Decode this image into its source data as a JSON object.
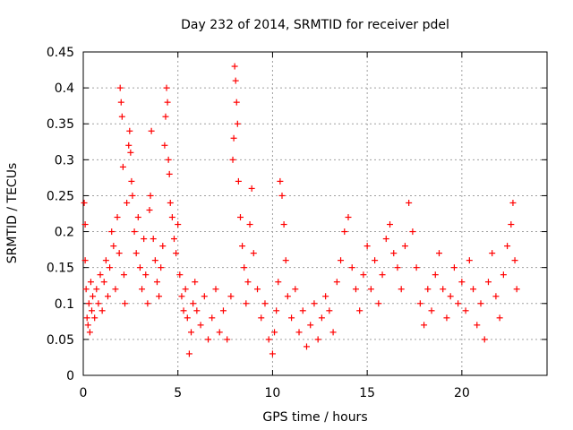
{
  "chart_data": {
    "type": "scatter",
    "title": "Day 232 of 2014, SRMTID for receiver pdel",
    "xlabel": "GPS time / hours",
    "ylabel": "SRMTID / TECUs",
    "xlim": [
      0,
      24.5
    ],
    "ylim": [
      0,
      0.45
    ],
    "xticks": [
      0,
      5,
      10,
      15,
      20
    ],
    "xtick_labels": [
      "0",
      "5",
      "10",
      "15",
      "20"
    ],
    "yticks": [
      0,
      0.05,
      0.1,
      0.15,
      0.2,
      0.25,
      0.3,
      0.35,
      0.4,
      0.45
    ],
    "ytick_labels": [
      "0",
      "0.05",
      "0.1",
      "0.15",
      "0.2",
      "0.25",
      "0.3",
      "0.35",
      "0.4",
      "0.45"
    ],
    "grid": true,
    "marker": "+",
    "color": "#ff0000",
    "series": [
      {
        "name": "SRMTID",
        "points": [
          [
            0.05,
            0.24
          ],
          [
            0.1,
            0.21
          ],
          [
            0.1,
            0.16
          ],
          [
            0.15,
            0.12
          ],
          [
            0.2,
            0.08
          ],
          [
            0.25,
            0.07
          ],
          [
            0.3,
            0.1
          ],
          [
            0.35,
            0.06
          ],
          [
            0.4,
            0.13
          ],
          [
            0.45,
            0.09
          ],
          [
            0.5,
            0.11
          ],
          [
            0.6,
            0.08
          ],
          [
            0.7,
            0.12
          ],
          [
            0.8,
            0.1
          ],
          [
            0.9,
            0.14
          ],
          [
            1.0,
            0.09
          ],
          [
            1.1,
            0.13
          ],
          [
            1.2,
            0.16
          ],
          [
            1.3,
            0.11
          ],
          [
            1.4,
            0.15
          ],
          [
            1.5,
            0.2
          ],
          [
            1.6,
            0.18
          ],
          [
            1.7,
            0.12
          ],
          [
            1.8,
            0.22
          ],
          [
            1.9,
            0.17
          ],
          [
            1.95,
            0.4
          ],
          [
            2.0,
            0.38
          ],
          [
            2.05,
            0.36
          ],
          [
            2.1,
            0.29
          ],
          [
            2.15,
            0.14
          ],
          [
            2.2,
            0.1
          ],
          [
            2.3,
            0.24
          ],
          [
            2.4,
            0.32
          ],
          [
            2.45,
            0.34
          ],
          [
            2.5,
            0.31
          ],
          [
            2.55,
            0.27
          ],
          [
            2.6,
            0.25
          ],
          [
            2.7,
            0.2
          ],
          [
            2.8,
            0.17
          ],
          [
            2.9,
            0.22
          ],
          [
            3.0,
            0.15
          ],
          [
            3.1,
            0.12
          ],
          [
            3.2,
            0.19
          ],
          [
            3.3,
            0.14
          ],
          [
            3.4,
            0.1
          ],
          [
            3.5,
            0.23
          ],
          [
            3.55,
            0.25
          ],
          [
            3.6,
            0.34
          ],
          [
            3.7,
            0.19
          ],
          [
            3.8,
            0.16
          ],
          [
            3.9,
            0.13
          ],
          [
            4.0,
            0.11
          ],
          [
            4.1,
            0.15
          ],
          [
            4.2,
            0.18
          ],
          [
            4.3,
            0.32
          ],
          [
            4.35,
            0.36
          ],
          [
            4.4,
            0.4
          ],
          [
            4.45,
            0.38
          ],
          [
            4.5,
            0.3
          ],
          [
            4.55,
            0.28
          ],
          [
            4.6,
            0.24
          ],
          [
            4.7,
            0.22
          ],
          [
            4.8,
            0.19
          ],
          [
            4.9,
            0.17
          ],
          [
            5.0,
            0.21
          ],
          [
            5.1,
            0.14
          ],
          [
            5.2,
            0.11
          ],
          [
            5.3,
            0.09
          ],
          [
            5.4,
            0.12
          ],
          [
            5.5,
            0.08
          ],
          [
            5.6,
            0.03
          ],
          [
            5.7,
            0.06
          ],
          [
            5.8,
            0.1
          ],
          [
            5.9,
            0.13
          ],
          [
            6.0,
            0.09
          ],
          [
            6.2,
            0.07
          ],
          [
            6.4,
            0.11
          ],
          [
            6.6,
            0.05
          ],
          [
            6.8,
            0.08
          ],
          [
            7.0,
            0.12
          ],
          [
            7.2,
            0.06
          ],
          [
            7.4,
            0.09
          ],
          [
            7.6,
            0.05
          ],
          [
            7.8,
            0.11
          ],
          [
            7.9,
            0.3
          ],
          [
            7.95,
            0.33
          ],
          [
            8.0,
            0.43
          ],
          [
            8.05,
            0.41
          ],
          [
            8.1,
            0.38
          ],
          [
            8.15,
            0.35
          ],
          [
            8.2,
            0.27
          ],
          [
            8.3,
            0.22
          ],
          [
            8.4,
            0.18
          ],
          [
            8.5,
            0.15
          ],
          [
            8.6,
            0.1
          ],
          [
            8.7,
            0.13
          ],
          [
            8.8,
            0.21
          ],
          [
            8.9,
            0.26
          ],
          [
            9.0,
            0.17
          ],
          [
            9.2,
            0.12
          ],
          [
            9.4,
            0.08
          ],
          [
            9.6,
            0.1
          ],
          [
            9.8,
            0.05
          ],
          [
            10.0,
            0.03
          ],
          [
            10.1,
            0.06
          ],
          [
            10.2,
            0.09
          ],
          [
            10.3,
            0.13
          ],
          [
            10.4,
            0.27
          ],
          [
            10.5,
            0.25
          ],
          [
            10.6,
            0.21
          ],
          [
            10.7,
            0.16
          ],
          [
            10.8,
            0.11
          ],
          [
            11.0,
            0.08
          ],
          [
            11.2,
            0.12
          ],
          [
            11.4,
            0.06
          ],
          [
            11.6,
            0.09
          ],
          [
            11.8,
            0.04
          ],
          [
            12.0,
            0.07
          ],
          [
            12.2,
            0.1
          ],
          [
            12.4,
            0.05
          ],
          [
            12.6,
            0.08
          ],
          [
            12.8,
            0.11
          ],
          [
            13.0,
            0.09
          ],
          [
            13.2,
            0.06
          ],
          [
            13.4,
            0.13
          ],
          [
            13.6,
            0.16
          ],
          [
            13.8,
            0.2
          ],
          [
            14.0,
            0.22
          ],
          [
            14.2,
            0.15
          ],
          [
            14.4,
            0.12
          ],
          [
            14.6,
            0.09
          ],
          [
            14.8,
            0.14
          ],
          [
            15.0,
            0.18
          ],
          [
            15.2,
            0.12
          ],
          [
            15.4,
            0.16
          ],
          [
            15.6,
            0.1
          ],
          [
            15.8,
            0.14
          ],
          [
            16.0,
            0.19
          ],
          [
            16.2,
            0.21
          ],
          [
            16.4,
            0.17
          ],
          [
            16.6,
            0.15
          ],
          [
            16.8,
            0.12
          ],
          [
            17.0,
            0.18
          ],
          [
            17.2,
            0.24
          ],
          [
            17.4,
            0.2
          ],
          [
            17.6,
            0.15
          ],
          [
            17.8,
            0.1
          ],
          [
            18.0,
            0.07
          ],
          [
            18.2,
            0.12
          ],
          [
            18.4,
            0.09
          ],
          [
            18.6,
            0.14
          ],
          [
            18.8,
            0.17
          ],
          [
            19.0,
            0.12
          ],
          [
            19.2,
            0.08
          ],
          [
            19.4,
            0.11
          ],
          [
            19.6,
            0.15
          ],
          [
            19.8,
            0.1
          ],
          [
            20.0,
            0.13
          ],
          [
            20.2,
            0.09
          ],
          [
            20.4,
            0.16
          ],
          [
            20.6,
            0.12
          ],
          [
            20.8,
            0.07
          ],
          [
            21.0,
            0.1
          ],
          [
            21.2,
            0.05
          ],
          [
            21.4,
            0.13
          ],
          [
            21.6,
            0.17
          ],
          [
            21.8,
            0.11
          ],
          [
            22.0,
            0.08
          ],
          [
            22.2,
            0.14
          ],
          [
            22.4,
            0.18
          ],
          [
            22.6,
            0.21
          ],
          [
            22.7,
            0.24
          ],
          [
            22.8,
            0.16
          ],
          [
            22.9,
            0.12
          ]
        ]
      }
    ]
  }
}
